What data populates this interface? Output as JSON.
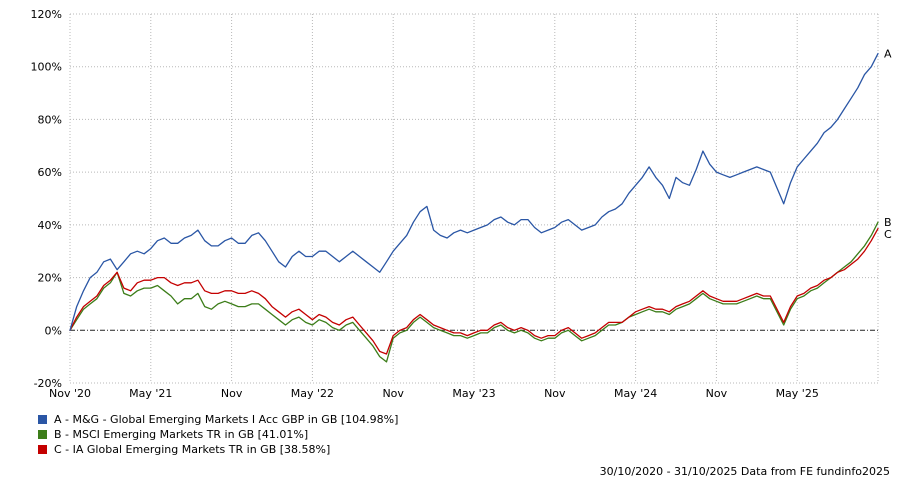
{
  "page": {
    "background": "#ffffff"
  },
  "footer": {
    "text": "30/10/2020 - 31/10/2025 Data from FE fundinfo2025"
  },
  "chart_data": {
    "type": "line",
    "title": "",
    "x_unit": "months since Nov 2020",
    "x_range": [
      0,
      60
    ],
    "x_step": 0.5,
    "grid": true,
    "legend_position": "bottom-left",
    "ylim": [
      -20,
      120
    ],
    "y_ticks": [
      120,
      100,
      80,
      60,
      40,
      20,
      0,
      -20
    ],
    "y_tick_suffix": "%",
    "x_ticks": [
      {
        "pos": 0,
        "label": "Nov '20"
      },
      {
        "pos": 6,
        "label": "May '21"
      },
      {
        "pos": 12,
        "label": "Nov"
      },
      {
        "pos": 18,
        "label": "May '22"
      },
      {
        "pos": 24,
        "label": "Nov"
      },
      {
        "pos": 30,
        "label": "May '23"
      },
      {
        "pos": 36,
        "label": "Nov"
      },
      {
        "pos": 42,
        "label": "May '24"
      },
      {
        "pos": 48,
        "label": "Nov"
      },
      {
        "pos": 54,
        "label": "May '25"
      },
      {
        "pos": 60,
        "label": ""
      }
    ],
    "series": [
      {
        "id": "A",
        "end_label": "A",
        "name": "M&G - Global Emerging Markets I Acc GBP in GB",
        "final_value": 104.98,
        "legend_label": "A - M&G - Global Emerging Markets I Acc GBP in GB [104.98%]",
        "color": "#2a56a5",
        "z": 3,
        "values": [
          0,
          9,
          15,
          20,
          22,
          26,
          27,
          23,
          26,
          29,
          30,
          29,
          31,
          34,
          35,
          33,
          33,
          35,
          36,
          38,
          34,
          32,
          32,
          34,
          35,
          33,
          33,
          36,
          37,
          34,
          30,
          26,
          24,
          28,
          30,
          28,
          28,
          30,
          30,
          28,
          26,
          28,
          30,
          28,
          26,
          24,
          22,
          26,
          30,
          33,
          36,
          41,
          45,
          47,
          38,
          36,
          35,
          37,
          38,
          37,
          38,
          39,
          40,
          42,
          43,
          41,
          40,
          42,
          42,
          39,
          37,
          38,
          39,
          41,
          42,
          40,
          38,
          39,
          40,
          43,
          45,
          46,
          48,
          52,
          55,
          58,
          62,
          58,
          55,
          50,
          58,
          56,
          55,
          61,
          68,
          63,
          60,
          59,
          58,
          59,
          60,
          61,
          62,
          61,
          60,
          54,
          48,
          56,
          62,
          65,
          68,
          71,
          75,
          77,
          80,
          84,
          88,
          92,
          97,
          100,
          104.98
        ]
      },
      {
        "id": "B",
        "end_label": "B",
        "name": "MSCI Emerging Markets TR in GB",
        "final_value": 41.01,
        "legend_label": "B - MSCI Emerging Markets TR in GB [41.01%]",
        "color": "#3c7d19",
        "z": 1,
        "values": [
          0,
          4,
          8,
          10,
          12,
          16,
          18,
          22,
          14,
          13,
          15,
          16,
          16,
          17,
          15,
          13,
          10,
          12,
          12,
          14,
          9,
          8,
          10,
          11,
          10,
          9,
          9,
          10,
          10,
          8,
          6,
          4,
          2,
          4,
          5,
          3,
          2,
          4,
          3,
          1,
          0,
          2,
          3,
          0,
          -3,
          -6,
          -10,
          -12,
          -3,
          -1,
          0,
          3,
          5,
          3,
          1,
          0,
          -1,
          -2,
          -2,
          -3,
          -2,
          -1,
          -1,
          1,
          2,
          0,
          -1,
          0,
          -1,
          -3,
          -4,
          -3,
          -3,
          -1,
          0,
          -2,
          -4,
          -3,
          -2,
          0,
          2,
          2,
          3,
          5,
          6,
          7,
          8,
          7,
          7,
          6,
          8,
          9,
          10,
          12,
          14,
          12,
          11,
          10,
          10,
          10,
          11,
          12,
          13,
          12,
          12,
          7,
          2,
          8,
          12,
          13,
          15,
          16,
          18,
          20,
          22,
          24,
          26,
          29,
          32,
          36,
          41.01
        ]
      },
      {
        "id": "C",
        "end_label": "C",
        "name": "IA Global Emerging Markets TR in GB",
        "final_value": 38.58,
        "legend_label": "C - IA Global Emerging Markets TR in GB [38.58%]",
        "color": "#c40000",
        "z": 2,
        "values": [
          0,
          5,
          9,
          11,
          13,
          17,
          19,
          22,
          16,
          15,
          18,
          19,
          19,
          20,
          20,
          18,
          17,
          18,
          18,
          19,
          15,
          14,
          14,
          15,
          15,
          14,
          14,
          15,
          14,
          12,
          9,
          7,
          5,
          7,
          8,
          6,
          4,
          6,
          5,
          3,
          2,
          4,
          5,
          2,
          -1,
          -4,
          -8,
          -9,
          -2,
          0,
          1,
          4,
          6,
          4,
          2,
          1,
          0,
          -1,
          -1,
          -2,
          -1,
          0,
          0,
          2,
          3,
          1,
          0,
          1,
          0,
          -2,
          -3,
          -2,
          -2,
          0,
          1,
          -1,
          -3,
          -2,
          -1,
          1,
          3,
          3,
          3,
          5,
          7,
          8,
          9,
          8,
          8,
          7,
          9,
          10,
          11,
          13,
          15,
          13,
          12,
          11,
          11,
          11,
          12,
          13,
          14,
          13,
          13,
          8,
          3,
          9,
          13,
          14,
          16,
          17,
          19,
          20,
          22,
          23,
          25,
          27,
          30,
          34,
          38.58
        ]
      }
    ]
  }
}
